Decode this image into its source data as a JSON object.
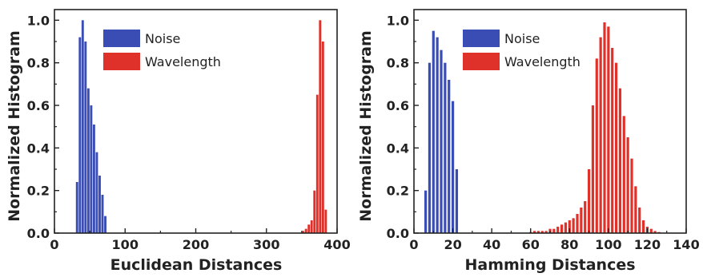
{
  "colors": {
    "noise": "#3a4db5",
    "wavelength": "#e0302a",
    "axis": "#222222"
  },
  "chart_data": [
    {
      "type": "bar",
      "xlabel": "Euclidean Distances",
      "ylabel": "Normalized Histogram",
      "xlim": [
        0,
        400
      ],
      "ylim": [
        0,
        1.05
      ],
      "xticks": [
        0,
        100,
        200,
        300,
        400
      ],
      "yticks": [
        0.0,
        0.2,
        0.4,
        0.6,
        0.8,
        1.0
      ],
      "xtick_labels": [
        "0",
        "100",
        "200",
        "300",
        "400"
      ],
      "ytick_labels": [
        "0.0",
        "0.2",
        "0.4",
        "0.6",
        "0.8",
        "1.0"
      ],
      "bin_width": 4,
      "legend": "top-left",
      "series": [
        {
          "name": "Noise",
          "color": "#3a4db5",
          "x": [
            32,
            36,
            40,
            44,
            48,
            52,
            56,
            60,
            64,
            68,
            72
          ],
          "values": [
            0.24,
            0.92,
            1.0,
            0.9,
            0.68,
            0.6,
            0.51,
            0.38,
            0.27,
            0.18,
            0.08
          ]
        },
        {
          "name": "Wavelength",
          "color": "#e0302a",
          "x": [
            352,
            356,
            360,
            364,
            368,
            372,
            376,
            380,
            384
          ],
          "values": [
            0.01,
            0.02,
            0.04,
            0.06,
            0.2,
            0.65,
            1.0,
            0.9,
            0.11
          ]
        }
      ]
    },
    {
      "type": "bar",
      "xlabel": "Hamming Distances",
      "ylabel": "Normalized Histogram",
      "xlim": [
        0,
        140
      ],
      "ylim": [
        0,
        1.05
      ],
      "xticks": [
        0,
        20,
        40,
        60,
        80,
        100,
        120,
        140
      ],
      "yticks": [
        0.0,
        0.2,
        0.4,
        0.6,
        0.8,
        1.0
      ],
      "xtick_labels": [
        "0",
        "20",
        "40",
        "60",
        "80",
        "100",
        "120",
        "140"
      ],
      "ytick_labels": [
        "0.0",
        "0.2",
        "0.4",
        "0.6",
        "0.8",
        "1.0"
      ],
      "bin_width": 1.6,
      "legend": "top-left",
      "series": [
        {
          "name": "Noise",
          "color": "#3a4db5",
          "x": [
            6,
            8,
            10,
            12,
            14,
            16,
            18,
            20,
            22
          ],
          "values": [
            0.2,
            0.8,
            0.95,
            0.92,
            0.86,
            0.8,
            0.72,
            0.62,
            0.3
          ]
        },
        {
          "name": "Wavelength",
          "color": "#e0302a",
          "x": [
            60,
            62,
            64,
            66,
            68,
            70,
            72,
            74,
            76,
            78,
            80,
            82,
            84,
            86,
            88,
            90,
            92,
            94,
            96,
            98,
            100,
            102,
            104,
            106,
            108,
            110,
            112,
            114,
            116,
            118,
            120,
            122,
            124,
            126
          ],
          "values": [
            0.005,
            0.01,
            0.01,
            0.01,
            0.01,
            0.02,
            0.02,
            0.03,
            0.04,
            0.05,
            0.06,
            0.07,
            0.09,
            0.12,
            0.15,
            0.3,
            0.6,
            0.82,
            0.92,
            0.99,
            0.97,
            0.87,
            0.8,
            0.68,
            0.55,
            0.45,
            0.35,
            0.22,
            0.12,
            0.06,
            0.03,
            0.02,
            0.01,
            0.005
          ]
        }
      ]
    }
  ]
}
